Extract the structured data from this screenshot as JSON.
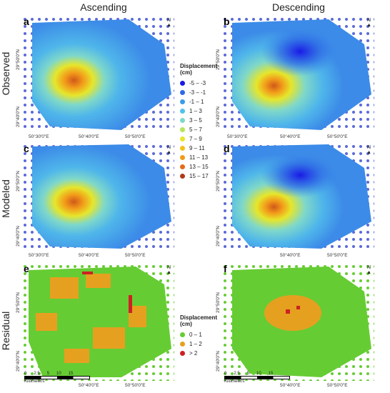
{
  "headers": {
    "ascending": "Ascending",
    "descending": "Descending"
  },
  "rows": {
    "observed": "Observed",
    "modeled": "Modeled",
    "residual": "Residual"
  },
  "panels": {
    "a": "a",
    "b": "b",
    "c": "c",
    "d": "d",
    "e": "e",
    "f": "f"
  },
  "north_symbol": "N",
  "coords": {
    "lat_50": "29°50'0\"N",
    "lat_40": "29°40'0\"N",
    "lon_30": "50°30'0\"E",
    "lon_40": "50°40'0\"E",
    "lon_50": "50°50'0\"E"
  },
  "legend_displacement": {
    "title": "Displacement",
    "unit": "(cm)",
    "items": [
      {
        "label": "-5 – -3",
        "color": "#1a1ae6"
      },
      {
        "label": "-3 – -1",
        "color": "#2e6ae6"
      },
      {
        "label": "-1 – 1",
        "color": "#3c9be8"
      },
      {
        "label": "1 – 3",
        "color": "#4fc3ea"
      },
      {
        "label": "3 – 5",
        "color": "#7fd8c9"
      },
      {
        "label": "5 – 7",
        "color": "#b6e65b"
      },
      {
        "label": "7 – 9",
        "color": "#e6e62b"
      },
      {
        "label": "9 – 11",
        "color": "#f2c21a"
      },
      {
        "label": "11 – 13",
        "color": "#f29a1a"
      },
      {
        "label": "13 – 15",
        "color": "#e66a1a"
      },
      {
        "label": "15 – 17",
        "color": "#b03a1a"
      }
    ]
  },
  "legend_residual": {
    "title": "Displacement",
    "unit": "(cm)",
    "items": [
      {
        "label": "0 – 1",
        "color": "#66cc33"
      },
      {
        "label": "1 – 2",
        "color": "#e6a020"
      },
      {
        "label": "> 2",
        "color": "#cc2222"
      }
    ]
  },
  "scalebar": {
    "ticks": [
      "0",
      "2.5",
      "5",
      "10",
      "15"
    ],
    "unit": "Kilometers"
  }
}
